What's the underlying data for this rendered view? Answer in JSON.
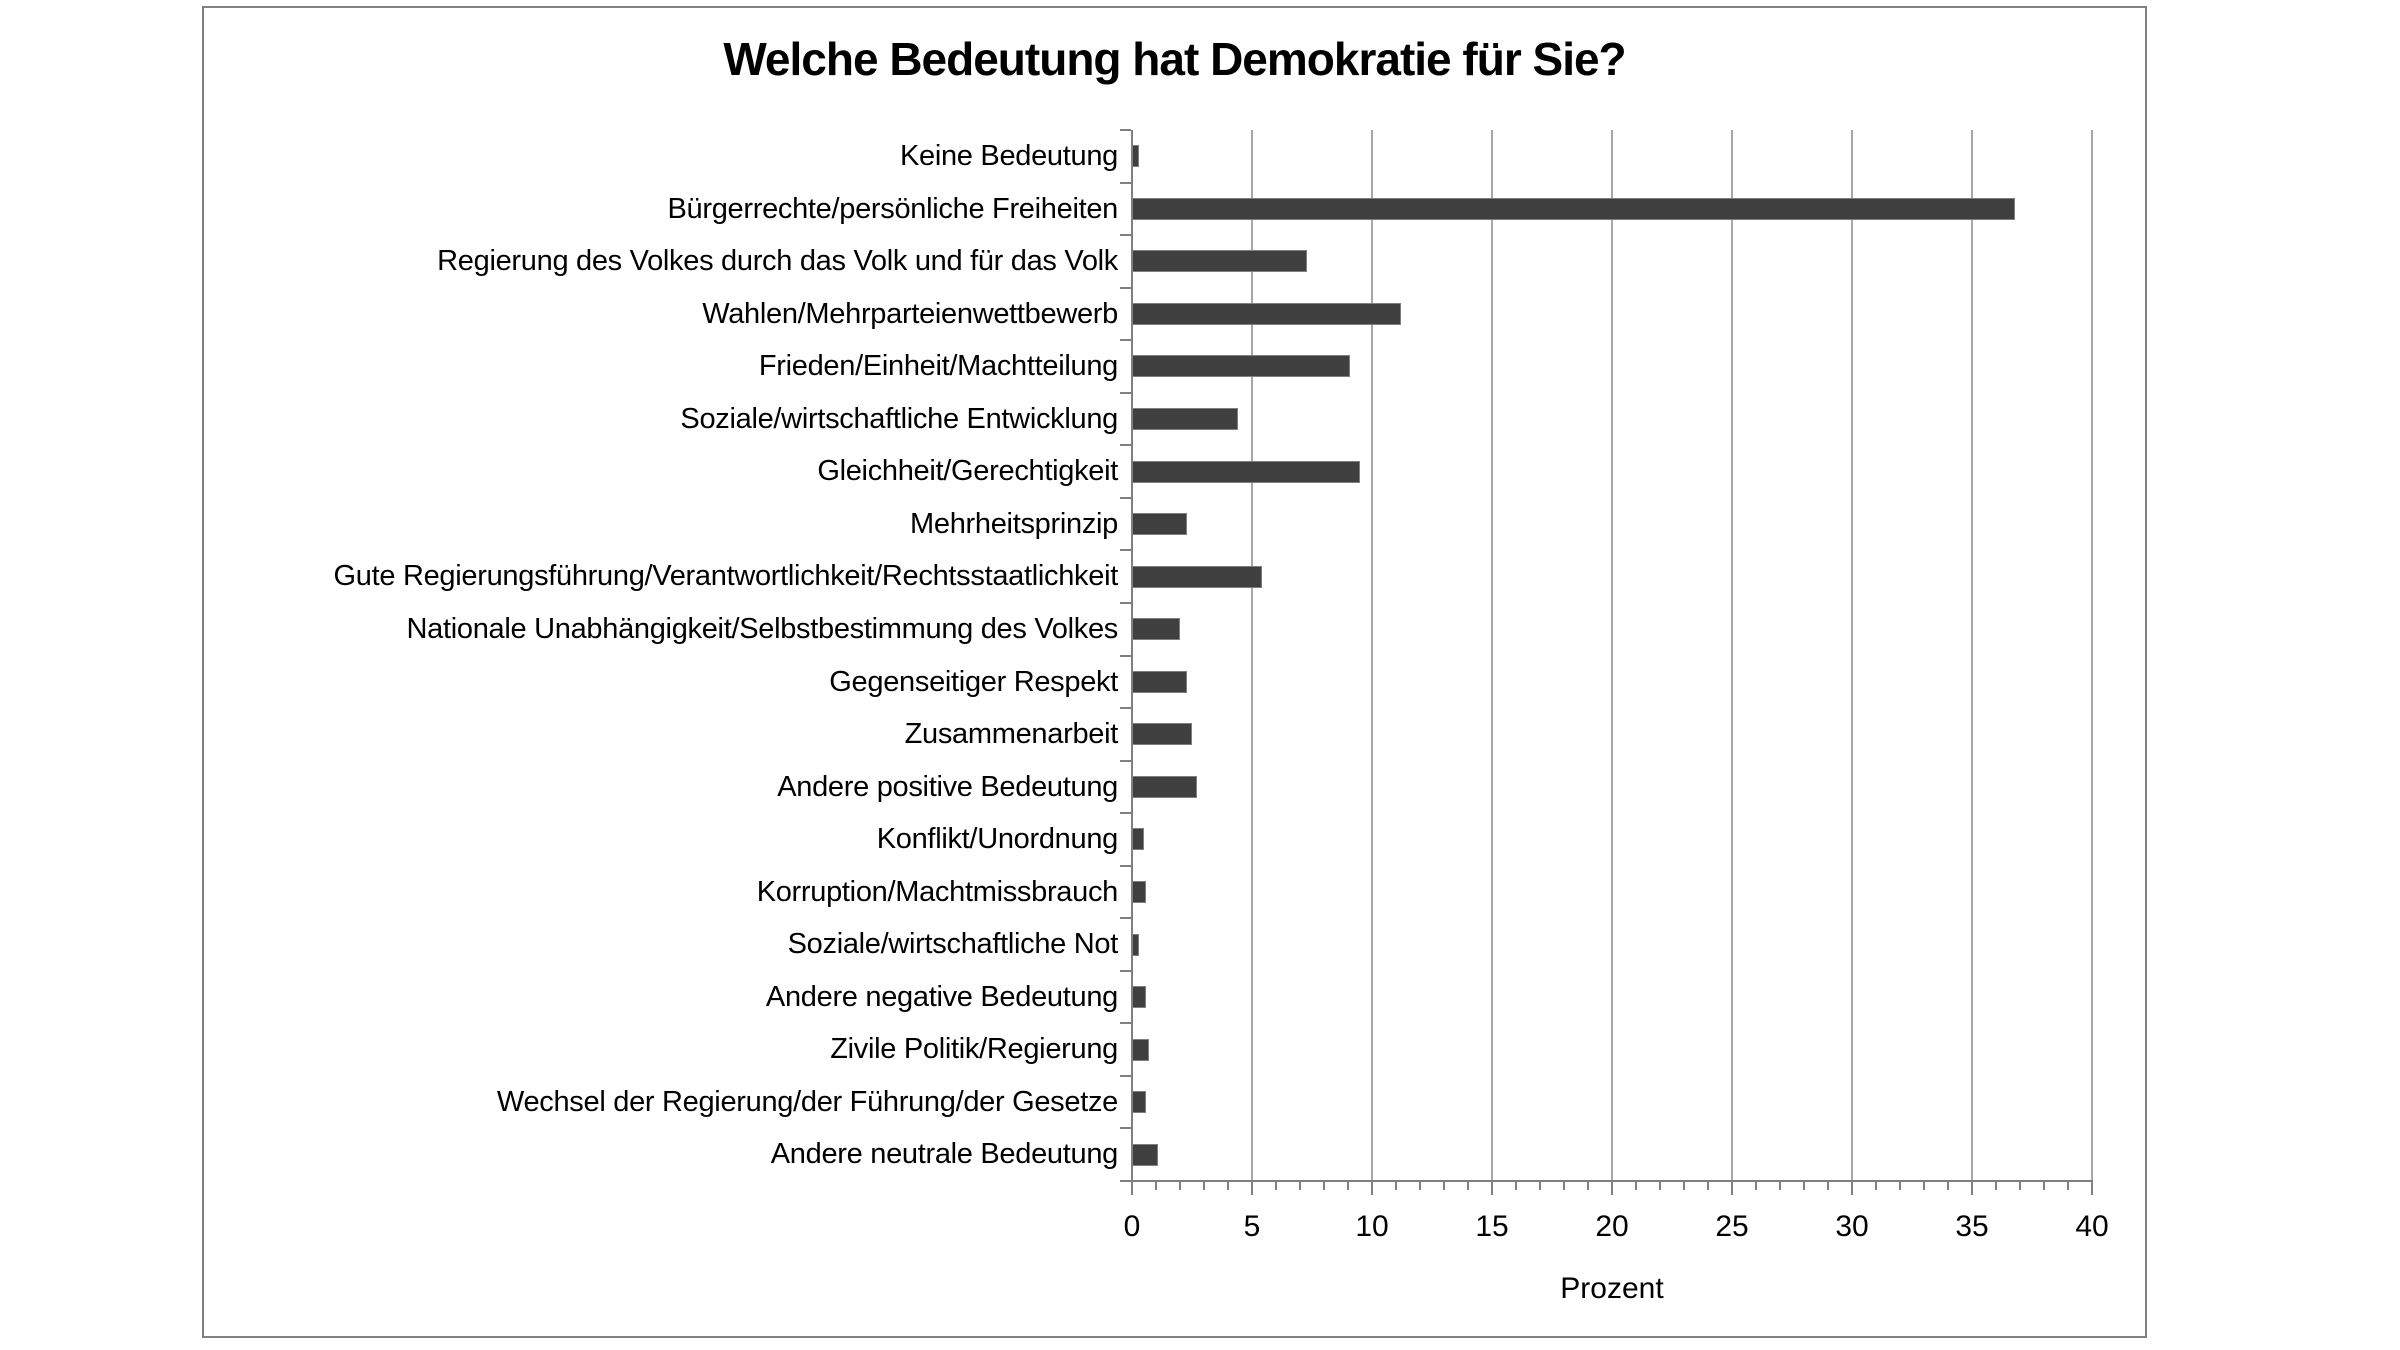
{
  "chart_data": {
    "type": "bar",
    "orientation": "horizontal",
    "title": "Welche Bedeutung hat Demokratie für Sie?",
    "xlabel": "Prozent",
    "xlim": [
      0,
      40
    ],
    "xticks": [
      0,
      5,
      10,
      15,
      20,
      25,
      30,
      35,
      40
    ],
    "minor_tick_step": 1,
    "grid": "vertical major gridlines",
    "legend_position": "none",
    "categories": [
      "Keine Bedeutung",
      "Bürgerrechte/persönliche Freiheiten",
      "Regierung des Volkes durch das Volk und für das Volk",
      "Wahlen/Mehrparteienwettbewerb",
      "Frieden/Einheit/Machtteilung",
      "Soziale/wirtschaftliche Entwicklung",
      "Gleichheit/Gerechtigkeit",
      "Mehrheitsprinzip",
      "Gute Regierungsführung/Verantwortlichkeit/Rechtsstaatlichkeit",
      "Nationale Unabhängigkeit/Selbstbestimmung des Volkes",
      "Gegenseitiger Respekt",
      "Zusammenarbeit",
      "Andere positive Bedeutung",
      "Konflikt/Unordnung",
      "Korruption/Machtmissbrauch",
      "Soziale/wirtschaftliche Not",
      "Andere negative Bedeutung",
      "Zivile Politik/Regierung",
      "Wechsel der Regierung/der Führung/der Gesetze",
      "Andere neutrale Bedeutung"
    ],
    "values": [
      0.3,
      36.8,
      7.3,
      11.2,
      9.1,
      4.4,
      9.5,
      2.3,
      5.4,
      2.0,
      2.3,
      2.5,
      2.7,
      0.5,
      0.6,
      0.3,
      0.6,
      0.7,
      0.6,
      1.1
    ],
    "colors": {
      "bar_fill": "#3f3f3f",
      "bar_border": "#7f7f7f",
      "gridline": "#a6a6a6",
      "axis": "#808080",
      "chart_border": "#808080",
      "text": "#000000",
      "background": "#ffffff"
    }
  }
}
